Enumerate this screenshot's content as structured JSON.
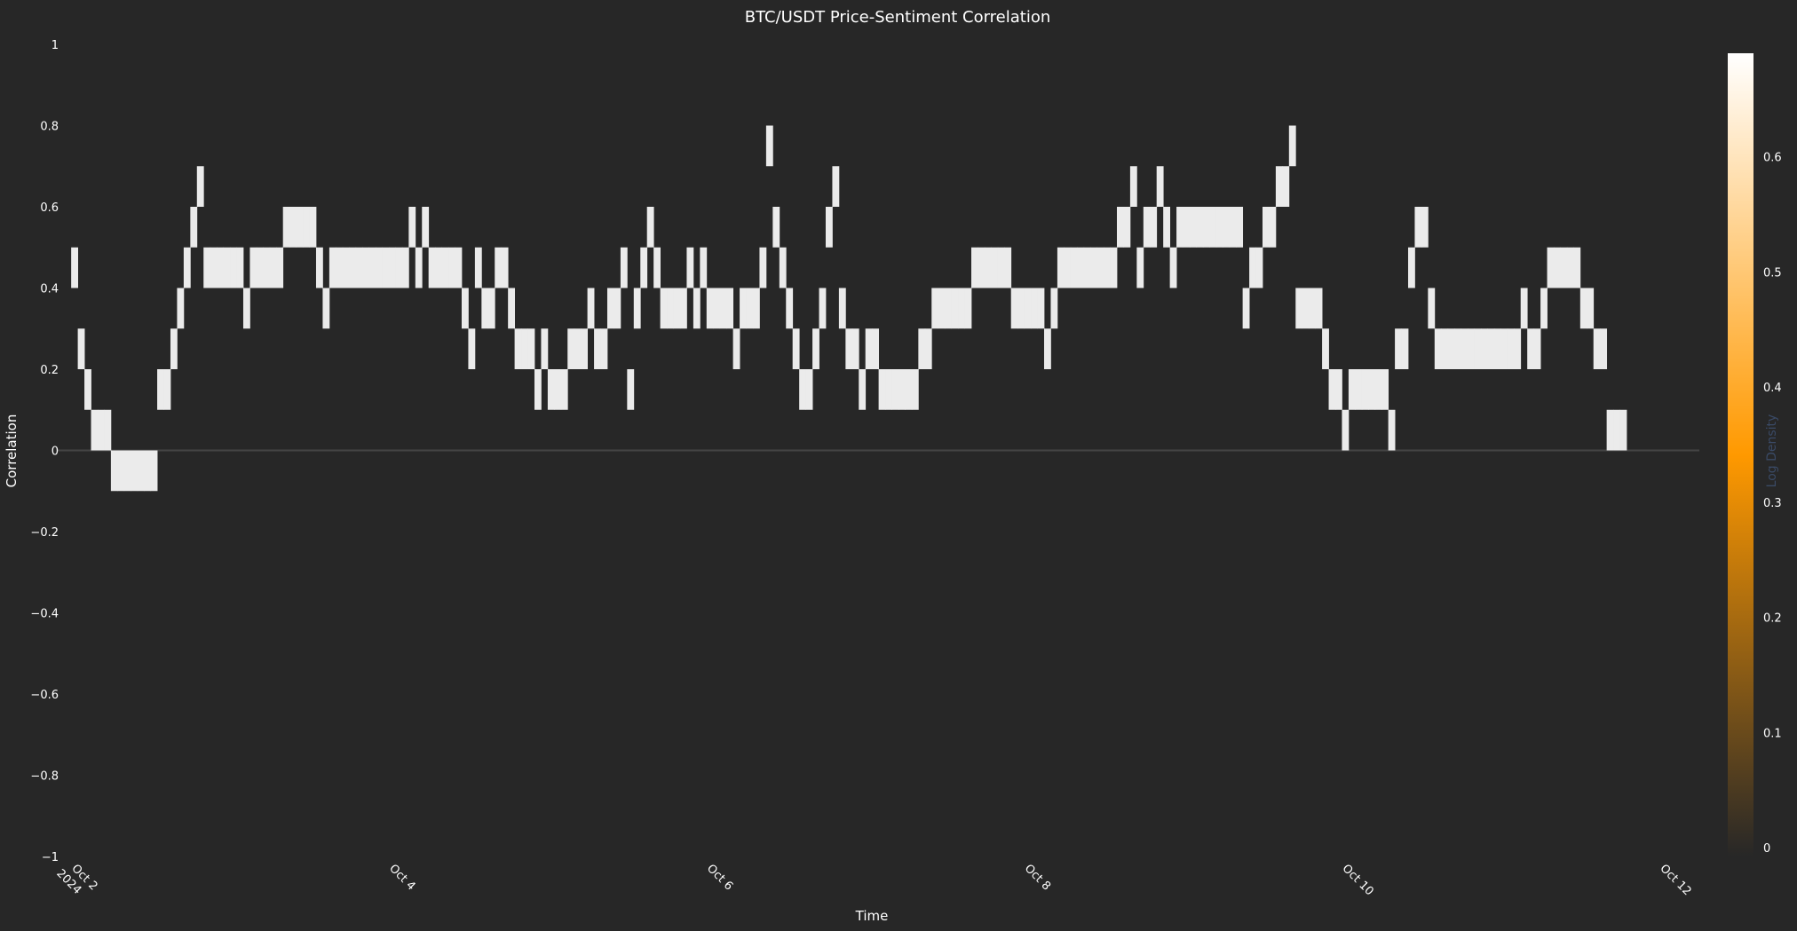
{
  "chart_data": {
    "type": "heatmap",
    "title": "BTC/USDT Price-Sentiment Correlation",
    "xlabel": "Time",
    "ylabel": "Correlation",
    "x_range": [
      "2024-10-01T21:50",
      "2024-10-12T06:00"
    ],
    "y_range": [
      -1,
      1
    ],
    "y_ticks": [
      {
        "value": 1,
        "label": "1"
      },
      {
        "value": 0.8,
        "label": "0.8"
      },
      {
        "value": 0.6,
        "label": "0.6"
      },
      {
        "value": 0.4,
        "label": "0.4"
      },
      {
        "value": 0.2,
        "label": "0.2"
      },
      {
        "value": 0,
        "label": "0"
      },
      {
        "value": -0.2,
        "label": "−0.2"
      },
      {
        "value": -0.4,
        "label": "−0.4"
      },
      {
        "value": -0.6,
        "label": "−0.6"
      },
      {
        "value": -0.8,
        "label": "−0.8"
      },
      {
        "value": -1,
        "label": "−1"
      }
    ],
    "x_ticks": [
      {
        "date": "2024-10-02",
        "label": "Oct 2",
        "label2": "2024"
      },
      {
        "date": "2024-10-04",
        "label": "Oct 4",
        "label2": ""
      },
      {
        "date": "2024-10-06",
        "label": "Oct 6",
        "label2": ""
      },
      {
        "date": "2024-10-08",
        "label": "Oct 8",
        "label2": ""
      },
      {
        "date": "2024-10-10",
        "label": "Oct 10",
        "label2": ""
      },
      {
        "date": "2024-10-12",
        "label": "Oct 12",
        "label2": ""
      }
    ],
    "cell_interval_hours": 1,
    "bin_width": 0.1,
    "first_timestamp": "2024-10-02T00:00",
    "correlation_bins": [
      0.4,
      0.2,
      0.1,
      0.0,
      0.0,
      0.0,
      -0.1,
      -0.1,
      -0.1,
      -0.1,
      -0.1,
      -0.1,
      -0.1,
      0.1,
      0.1,
      0.2,
      0.3,
      0.4,
      0.5,
      0.6,
      0.4,
      0.4,
      0.4,
      0.4,
      0.4,
      0.4,
      0.3,
      0.4,
      0.4,
      0.4,
      0.4,
      0.4,
      0.5,
      0.5,
      0.5,
      0.5,
      0.5,
      0.4,
      0.3,
      0.4,
      0.4,
      0.4,
      0.4,
      0.4,
      0.4,
      0.4,
      0.4,
      0.4,
      0.4,
      0.4,
      0.4,
      0.5,
      0.4,
      0.5,
      0.4,
      0.4,
      0.4,
      0.4,
      0.4,
      0.3,
      0.2,
      0.4,
      0.3,
      0.3,
      0.4,
      0.4,
      0.3,
      0.2,
      0.2,
      0.2,
      0.1,
      0.2,
      0.1,
      0.1,
      0.1,
      0.2,
      0.2,
      0.2,
      0.3,
      0.2,
      0.2,
      0.3,
      0.3,
      0.4,
      0.1,
      0.3,
      0.4,
      0.5,
      0.4,
      0.3,
      0.3,
      0.3,
      0.3,
      0.4,
      0.3,
      0.4,
      0.3,
      0.3,
      0.3,
      0.3,
      0.2,
      0.3,
      0.3,
      0.3,
      0.4,
      0.7,
      0.5,
      0.4,
      0.3,
      0.2,
      0.1,
      0.1,
      0.2,
      0.3,
      0.5,
      0.6,
      0.3,
      0.2,
      0.2,
      0.1,
      0.2,
      0.2,
      0.1,
      0.1,
      0.1,
      0.1,
      0.1,
      0.1,
      0.2,
      0.2,
      0.3,
      0.3,
      0.3,
      0.3,
      0.3,
      0.3,
      0.4,
      0.4,
      0.4,
      0.4,
      0.4,
      0.4,
      0.3,
      0.3,
      0.3,
      0.3,
      0.3,
      0.2,
      0.3,
      0.4,
      0.4,
      0.4,
      0.4,
      0.4,
      0.4,
      0.4,
      0.4,
      0.4,
      0.5,
      0.5,
      0.6,
      0.4,
      0.5,
      0.5,
      0.6,
      0.5,
      0.4,
      0.5,
      0.5,
      0.5,
      0.5,
      0.5,
      0.5,
      0.5,
      0.5,
      0.5,
      0.5,
      0.3,
      0.4,
      0.4,
      0.5,
      0.5,
      0.6,
      0.6,
      0.7,
      0.3,
      0.3,
      0.3,
      0.3,
      0.2,
      0.1,
      0.1,
      0.0,
      0.1,
      0.1,
      0.1,
      0.1,
      0.1,
      0.1,
      0.0,
      0.2,
      0.2,
      0.4,
      0.5,
      0.5,
      0.3,
      0.2,
      0.2,
      0.2,
      0.2,
      0.2,
      0.2,
      0.2,
      0.2,
      0.2,
      0.2,
      0.2,
      0.2,
      0.2,
      0.3,
      0.2,
      0.2,
      0.3,
      0.4,
      0.4,
      0.4,
      0.4,
      0.4,
      0.3,
      0.3,
      0.2,
      0.2,
      0.0,
      0.0,
      0.0
    ],
    "z_value": 0.69,
    "colorbar": {
      "title": "Log Density",
      "range": [
        0,
        0.69
      ],
      "ticks": [
        0,
        0.1,
        0.2,
        0.3,
        0.4,
        0.5,
        0.6
      ],
      "colors": [
        "#272727",
        "#ff9900",
        "#ffffff"
      ]
    },
    "cell_color": "#ebebeb",
    "zero_line": true,
    "grid": false,
    "legend": "none"
  }
}
